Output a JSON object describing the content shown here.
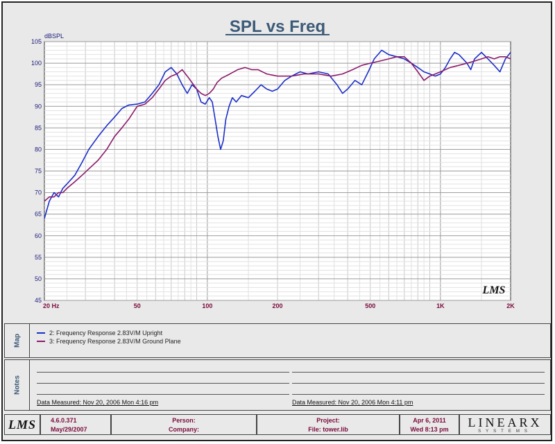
{
  "chart_data": {
    "type": "line",
    "title": "SPL vs Freq",
    "ylabel": "dBSPL",
    "xlabel": "",
    "xscale": "log",
    "xlim": [
      20,
      2000
    ],
    "ylim": [
      45,
      105
    ],
    "yticks": [
      105,
      100,
      95,
      90,
      85,
      80,
      75,
      70,
      65,
      60,
      55,
      50,
      45
    ],
    "xticks": [
      {
        "value": 20,
        "label": "20  Hz"
      },
      {
        "value": 50,
        "label": "50"
      },
      {
        "value": 100,
        "label": "100"
      },
      {
        "value": 200,
        "label": "200"
      },
      {
        "value": 500,
        "label": "500"
      },
      {
        "value": 1000,
        "label": "1K"
      },
      {
        "value": 2000,
        "label": "2K"
      }
    ],
    "grid": true,
    "watermark": "LMS",
    "series": [
      {
        "name": "2: Frequency Response 2.83V/M Upright",
        "color": "#1a2ec8",
        "points": [
          [
            20,
            64
          ],
          [
            21,
            68
          ],
          [
            22,
            70
          ],
          [
            23,
            69
          ],
          [
            24,
            71
          ],
          [
            25,
            72
          ],
          [
            27,
            74
          ],
          [
            29,
            77
          ],
          [
            31,
            80
          ],
          [
            34,
            83
          ],
          [
            37,
            85.5
          ],
          [
            40,
            87.5
          ],
          [
            43,
            89.5
          ],
          [
            46,
            90.3
          ],
          [
            50,
            90.5
          ],
          [
            54,
            91
          ],
          [
            58,
            93
          ],
          [
            62,
            95
          ],
          [
            66,
            98
          ],
          [
            70,
            99
          ],
          [
            74,
            97.5
          ],
          [
            78,
            95
          ],
          [
            82,
            93
          ],
          [
            86,
            95
          ],
          [
            90,
            94
          ],
          [
            94,
            91
          ],
          [
            98,
            90.5
          ],
          [
            102,
            92
          ],
          [
            105,
            91
          ],
          [
            108,
            87
          ],
          [
            111,
            83
          ],
          [
            114,
            80
          ],
          [
            117,
            82
          ],
          [
            120,
            87
          ],
          [
            124,
            90
          ],
          [
            128,
            92
          ],
          [
            133,
            91
          ],
          [
            140,
            92.5
          ],
          [
            150,
            92
          ],
          [
            160,
            93.5
          ],
          [
            170,
            95
          ],
          [
            180,
            94
          ],
          [
            190,
            93.5
          ],
          [
            200,
            94
          ],
          [
            215,
            96
          ],
          [
            230,
            97
          ],
          [
            250,
            98
          ],
          [
            270,
            97.5
          ],
          [
            300,
            98
          ],
          [
            330,
            97.5
          ],
          [
            360,
            95
          ],
          [
            380,
            93
          ],
          [
            400,
            94
          ],
          [
            430,
            96
          ],
          [
            460,
            95
          ],
          [
            490,
            98
          ],
          [
            520,
            101
          ],
          [
            560,
            103
          ],
          [
            600,
            102
          ],
          [
            650,
            101.5
          ],
          [
            700,
            101
          ],
          [
            750,
            100
          ],
          [
            800,
            99
          ],
          [
            850,
            98
          ],
          [
            900,
            97.5
          ],
          [
            950,
            97
          ],
          [
            1000,
            97.5
          ],
          [
            1050,
            99
          ],
          [
            1100,
            101
          ],
          [
            1150,
            102.5
          ],
          [
            1200,
            102
          ],
          [
            1300,
            100
          ],
          [
            1350,
            98.5
          ],
          [
            1400,
            101
          ],
          [
            1500,
            102.5
          ],
          [
            1600,
            101
          ],
          [
            1700,
            99.5
          ],
          [
            1800,
            98
          ],
          [
            1900,
            101
          ],
          [
            2000,
            102.5
          ]
        ]
      },
      {
        "name": "3: Frequency Response 2.83V/M Ground Plane",
        "color": "#8a1a6a",
        "points": [
          [
            20,
            68
          ],
          [
            21,
            69
          ],
          [
            22,
            69
          ],
          [
            23,
            70
          ],
          [
            24,
            70
          ],
          [
            25,
            71
          ],
          [
            27,
            72.5
          ],
          [
            29,
            74
          ],
          [
            31,
            75.5
          ],
          [
            34,
            77.5
          ],
          [
            37,
            80
          ],
          [
            40,
            83
          ],
          [
            43,
            85
          ],
          [
            46,
            87
          ],
          [
            50,
            90
          ],
          [
            54,
            90.5
          ],
          [
            58,
            92
          ],
          [
            62,
            94
          ],
          [
            66,
            96
          ],
          [
            70,
            97
          ],
          [
            74,
            97.5
          ],
          [
            78,
            98.5
          ],
          [
            82,
            97
          ],
          [
            86,
            95.5
          ],
          [
            90,
            94
          ],
          [
            94,
            93
          ],
          [
            98,
            92.5
          ],
          [
            102,
            93
          ],
          [
            106,
            94
          ],
          [
            110,
            95.5
          ],
          [
            115,
            96.5
          ],
          [
            125,
            97.5
          ],
          [
            135,
            98.5
          ],
          [
            145,
            99
          ],
          [
            155,
            98.5
          ],
          [
            165,
            98.5
          ],
          [
            180,
            97.5
          ],
          [
            200,
            97
          ],
          [
            230,
            97
          ],
          [
            260,
            97.5
          ],
          [
            300,
            97.5
          ],
          [
            340,
            97
          ],
          [
            380,
            97.5
          ],
          [
            420,
            98.5
          ],
          [
            460,
            99.5
          ],
          [
            500,
            100
          ],
          [
            550,
            100.5
          ],
          [
            600,
            101
          ],
          [
            650,
            101.5
          ],
          [
            700,
            101.5
          ],
          [
            750,
            100
          ],
          [
            800,
            98
          ],
          [
            850,
            96
          ],
          [
            900,
            97
          ],
          [
            950,
            97.5
          ],
          [
            1000,
            98
          ],
          [
            1100,
            99
          ],
          [
            1200,
            99.5
          ],
          [
            1300,
            100
          ],
          [
            1400,
            100.5
          ],
          [
            1500,
            101
          ],
          [
            1600,
            101.5
          ],
          [
            1700,
            101
          ],
          [
            1800,
            101.5
          ],
          [
            1900,
            101.5
          ],
          [
            2000,
            101
          ]
        ]
      }
    ]
  },
  "panels": {
    "map_label": "Map",
    "notes_label": "Notes",
    "legend": [
      {
        "label": "2: Frequency Response 2.83V/M Upright",
        "color": "#1a2ec8"
      },
      {
        "label": "3: Frequency Response 2.83V/M Ground Plane",
        "color": "#8a1a6a"
      }
    ],
    "notes_left_date": "Data Measured: Nov 20, 2006  Mon  4:16 pm",
    "notes_right_date": "Data Measured: Nov 20, 2006  Mon  4:11 pm"
  },
  "footer": {
    "logo": "LMS",
    "version": "4.6.0.371",
    "version_date": "May/29/2007",
    "person_label": "Person:",
    "company_label": "Company:",
    "project_label": "Project:",
    "file_label": "File: tower.lib",
    "date": "Apr  6, 2011",
    "time": "Wed  8:13 pm",
    "brand": "LINEARX",
    "brand_sub": "SYSTEMS"
  }
}
